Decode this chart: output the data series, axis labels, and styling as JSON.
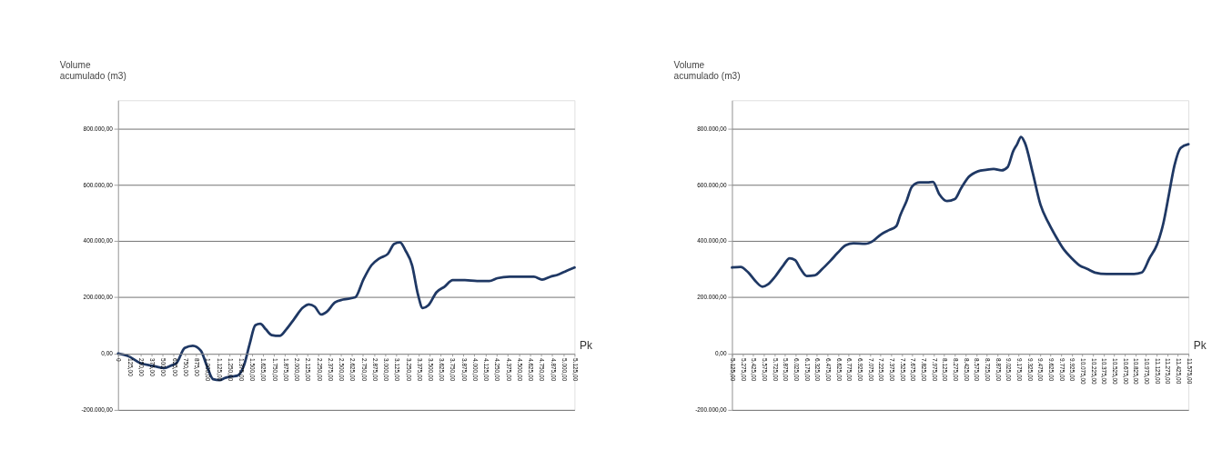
{
  "chart_data": [
    {
      "type": "line",
      "ylabel": "Volume\nacumulado (m3)",
      "xlabel": "Pk",
      "grid": "y",
      "marker": "none",
      "line_style": "solid",
      "xlim": [
        0,
        5125
      ],
      "ylim": [
        -200000,
        900000
      ],
      "yticks": [
        {
          "value": -200000,
          "label": "-200.000,00"
        },
        {
          "value": 0,
          "label": "0,00"
        },
        {
          "value": 200000,
          "label": "200.000,00"
        },
        {
          "value": 400000,
          "label": "400.000,00"
        },
        {
          "value": 600000,
          "label": "600.000,00"
        },
        {
          "value": 800000,
          "label": "800.000,00"
        }
      ],
      "xticks": [
        0,
        {
          "value": 125,
          "label": "125,00"
        },
        {
          "value": 250,
          "label": "250,00"
        },
        {
          "value": 375,
          "label": "375,00"
        },
        {
          "value": 500,
          "label": "500,00"
        },
        {
          "value": 625,
          "label": "625,00"
        },
        {
          "value": 750,
          "label": "750,00"
        },
        {
          "value": 875,
          "label": "875,00"
        },
        {
          "value": 1000,
          "label": "1.000,00"
        },
        {
          "value": 1125,
          "label": "1.125,00"
        },
        {
          "value": 1250,
          "label": "1.250,00"
        },
        {
          "value": 1375,
          "label": "1.375,00"
        },
        {
          "value": 1500,
          "label": "1.500,00"
        },
        {
          "value": 1625,
          "label": "1.625,00"
        },
        {
          "value": 1750,
          "label": "1.750,00"
        },
        {
          "value": 1875,
          "label": "1.875,00"
        },
        {
          "value": 2000,
          "label": "2.000,00"
        },
        {
          "value": 2125,
          "label": "2.125,00"
        },
        {
          "value": 2250,
          "label": "2.250,00"
        },
        {
          "value": 2375,
          "label": "2.375,00"
        },
        {
          "value": 2500,
          "label": "2.500,00"
        },
        {
          "value": 2625,
          "label": "2.625,00"
        },
        {
          "value": 2750,
          "label": "2.750,00"
        },
        {
          "value": 2875,
          "label": "2.875,00"
        },
        {
          "value": 3000,
          "label": "3.000,00"
        },
        {
          "value": 3125,
          "label": "3.125,00"
        },
        {
          "value": 3250,
          "label": "3.250,00"
        },
        {
          "value": 3375,
          "label": "3.375,00"
        },
        {
          "value": 3500,
          "label": "3.500,00"
        },
        {
          "value": 3625,
          "label": "3.625,00"
        },
        {
          "value": 3750,
          "label": "3.750,00"
        },
        {
          "value": 3875,
          "label": "3.875,00"
        },
        {
          "value": 4000,
          "label": "4.000,00"
        },
        {
          "value": 4125,
          "label": "4.125,00"
        },
        {
          "value": 4250,
          "label": "4.250,00"
        },
        {
          "value": 4375,
          "label": "4.375,00"
        },
        {
          "value": 4500,
          "label": "4.500,00"
        },
        {
          "value": 4625,
          "label": "4.625,00"
        },
        {
          "value": 4750,
          "label": "4.750,00"
        },
        {
          "value": 4875,
          "label": "4.875,00"
        },
        {
          "value": 5000,
          "label": "5.000,00"
        },
        {
          "value": 5125,
          "label": "5.125,00"
        }
      ],
      "series": [
        {
          "color": "#1f3864",
          "x": [
            0,
            109,
            246,
            383,
            520,
            593,
            657,
            748,
            839,
            930,
            994,
            1067,
            1140,
            1204,
            1277,
            1341,
            1414,
            1478,
            1541,
            1596,
            1660,
            1724,
            1815,
            1888,
            1979,
            2070,
            2143,
            2207,
            2280,
            2344,
            2435,
            2526,
            2663,
            2754,
            2845,
            2937,
            3028,
            3101,
            3165,
            3229,
            3301,
            3365,
            3420,
            3484,
            3575,
            3666,
            3757,
            3894,
            4031,
            4168,
            4259,
            4396,
            4533,
            4669,
            4761,
            4852,
            4943,
            5034,
            5125
          ],
          "values": [
            0,
            -8000,
            -33000,
            -43000,
            -51000,
            -43000,
            -33000,
            20000,
            28000,
            10000,
            -41000,
            -91000,
            -94000,
            -86000,
            -81000,
            -78000,
            -41000,
            35000,
            101000,
            106000,
            86000,
            66000,
            63000,
            86000,
            124000,
            162000,
            175000,
            167000,
            139000,
            149000,
            182000,
            192000,
            200000,
            263000,
            314000,
            339000,
            354000,
            390000,
            395000,
            365000,
            314000,
            213000,
            162000,
            172000,
            218000,
            238000,
            261000,
            261000,
            258000,
            258000,
            268000,
            273000,
            273000,
            273000,
            263000,
            273000,
            281000,
            294000,
            306000
          ]
        }
      ]
    },
    {
      "type": "line",
      "ylabel": "Volume\nacumulado (m3)",
      "xlabel": "Pk",
      "grid": "y",
      "marker": "none",
      "line_style": "solid",
      "xlim": [
        5125,
        11575
      ],
      "ylim": [
        -200000,
        900000
      ],
      "yticks": [
        {
          "value": -200000,
          "label": "-200.000,00"
        },
        {
          "value": 0,
          "label": "0,00"
        },
        {
          "value": 200000,
          "label": "200.000,00"
        },
        {
          "value": 400000,
          "label": "400.000,00"
        },
        {
          "value": 600000,
          "label": "600.000,00"
        },
        {
          "value": 800000,
          "label": "800.000,00"
        }
      ],
      "xticks": [
        {
          "value": 5125,
          "label": "5.125,00"
        },
        {
          "value": 5275,
          "label": "5.275,00"
        },
        {
          "value": 5425,
          "label": "5.425,00"
        },
        {
          "value": 5575,
          "label": "5.575,00"
        },
        {
          "value": 5725,
          "label": "5.725,00"
        },
        {
          "value": 5875,
          "label": "5.875,00"
        },
        {
          "value": 6025,
          "label": "6.025,00"
        },
        {
          "value": 6175,
          "label": "6.175,00"
        },
        {
          "value": 6325,
          "label": "6.325,00"
        },
        {
          "value": 6475,
          "label": "6.475,00"
        },
        {
          "value": 6625,
          "label": "6.625,00"
        },
        {
          "value": 6775,
          "label": "6.775,00"
        },
        {
          "value": 6925,
          "label": "6.925,00"
        },
        {
          "value": 7075,
          "label": "7.075,00"
        },
        {
          "value": 7225,
          "label": "7.225,00"
        },
        {
          "value": 7375,
          "label": "7.375,00"
        },
        {
          "value": 7525,
          "label": "7.525,00"
        },
        {
          "value": 7675,
          "label": "7.675,00"
        },
        {
          "value": 7825,
          "label": "7.825,00"
        },
        {
          "value": 7975,
          "label": "7.975,00"
        },
        {
          "value": 8125,
          "label": "8.125,00"
        },
        {
          "value": 8275,
          "label": "8.275,00"
        },
        {
          "value": 8425,
          "label": "8.425,00"
        },
        {
          "value": 8575,
          "label": "8.575,00"
        },
        {
          "value": 8725,
          "label": "8.725,00"
        },
        {
          "value": 8875,
          "label": "8.875,00"
        },
        {
          "value": 9025,
          "label": "9.025,00"
        },
        {
          "value": 9175,
          "label": "9.175,00"
        },
        {
          "value": 9325,
          "label": "9.325,00"
        },
        {
          "value": 9475,
          "label": "9.475,00"
        },
        {
          "value": 9625,
          "label": "9.625,00"
        },
        {
          "value": 9775,
          "label": "9.775,00"
        },
        {
          "value": 9925,
          "label": "9.925,00"
        },
        {
          "value": 10075,
          "label": "10.075,00"
        },
        {
          "value": 10225,
          "label": "10.225,00"
        },
        {
          "value": 10375,
          "label": "10.375,00"
        },
        {
          "value": 10525,
          "label": "10.525,00"
        },
        {
          "value": 10675,
          "label": "10.675,00"
        },
        {
          "value": 10825,
          "label": "10.825,00"
        },
        {
          "value": 10975,
          "label": "10.975,00"
        },
        {
          "value": 11125,
          "label": "11.125,00"
        },
        {
          "value": 11275,
          "label": "11.275,00"
        },
        {
          "value": 11425,
          "label": "11.425,00"
        },
        {
          "value": 11575,
          "label": "11.575,00"
        }
      ],
      "series": [
        {
          "color": "#1f3864",
          "x": [
            5125,
            5246,
            5356,
            5466,
            5554,
            5631,
            5741,
            5851,
            5940,
            6017,
            6094,
            6182,
            6292,
            6402,
            6512,
            6622,
            6732,
            6842,
            7007,
            7117,
            7227,
            7337,
            7447,
            7502,
            7591,
            7668,
            7778,
            7888,
            7965,
            8053,
            8163,
            8273,
            8361,
            8471,
            8603,
            8713,
            8823,
            8933,
            9021,
            9098,
            9154,
            9209,
            9264,
            9374,
            9484,
            9594,
            9704,
            9814,
            9924,
            10034,
            10144,
            10254,
            10419,
            10584,
            10805,
            10915,
            11025,
            11135,
            11223,
            11300,
            11377,
            11465,
            11575
          ],
          "values": [
            306000,
            308000,
            288000,
            255000,
            238000,
            246000,
            276000,
            314000,
            339000,
            332000,
            301000,
            276000,
            278000,
            301000,
            329000,
            359000,
            385000,
            392000,
            390000,
            400000,
            423000,
            438000,
            453000,
            491000,
            542000,
            593000,
            608000,
            608000,
            610000,
            567000,
            542000,
            549000,
            587000,
            628000,
            648000,
            653000,
            656000,
            651000,
            663000,
            719000,
            744000,
            770000,
            749000,
            643000,
            529000,
            466000,
            415000,
            370000,
            339000,
            314000,
            301000,
            288000,
            283000,
            283000,
            283000,
            288000,
            339000,
            390000,
            466000,
            567000,
            668000,
            731000,
            744000
          ]
        }
      ]
    }
  ]
}
